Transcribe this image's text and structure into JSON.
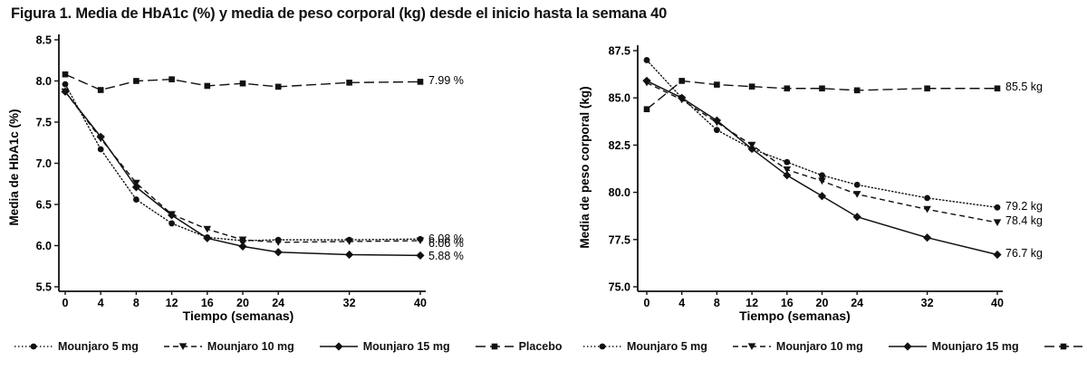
{
  "figure": {
    "title": "Figura 1. Media de HbA1c (%) y media de peso corporal (kg) desde el inicio hasta la semana 40"
  },
  "legend": [
    {
      "label": "Mounjaro 5 mg",
      "style": "dotted",
      "marker": "circle"
    },
    {
      "label": "Mounjaro 10 mg",
      "style": "dashed",
      "marker": "triangle-down"
    },
    {
      "label": "Mounjaro 15 mg",
      "style": "solid",
      "marker": "diamond"
    },
    {
      "label": "Placebo",
      "style": "longdash",
      "marker": "square"
    }
  ],
  "chart_data": [
    {
      "type": "line",
      "title": "",
      "xlabel": "Tiempo (semanas)",
      "ylabel": "Media de HbA1c (%)",
      "xlim": [
        0,
        40
      ],
      "ylim": [
        5.5,
        8.5
      ],
      "xticks": [
        0,
        4,
        8,
        12,
        16,
        20,
        24,
        32,
        40
      ],
      "yticks": [
        "5.5",
        "6.0",
        "6.5",
        "7.0",
        "7.5",
        "8.0",
        "8.5"
      ],
      "x": [
        0,
        4,
        8,
        12,
        16,
        20,
        24,
        32,
        40
      ],
      "grid": false,
      "legend_position": "bottom",
      "series": [
        {
          "name": "Mounjaro 5 mg",
          "style": "dotted",
          "marker": "circle",
          "values": [
            7.96,
            7.17,
            6.56,
            6.27,
            6.1,
            6.06,
            6.07,
            6.07,
            6.08
          ],
          "end_label": "6.08 %"
        },
        {
          "name": "Mounjaro 10 mg",
          "style": "dashed",
          "marker": "triangle-down",
          "values": [
            7.87,
            7.3,
            6.76,
            6.38,
            6.2,
            6.07,
            6.04,
            6.05,
            6.06
          ],
          "end_label": "6.06 %"
        },
        {
          "name": "Mounjaro 15 mg",
          "style": "solid",
          "marker": "diamond",
          "values": [
            7.87,
            7.32,
            6.71,
            6.37,
            6.09,
            5.99,
            5.92,
            5.89,
            5.88
          ],
          "end_label": "5.88 %"
        },
        {
          "name": "Placebo",
          "style": "longdash",
          "marker": "square",
          "values": [
            8.08,
            7.89,
            8.0,
            8.02,
            7.94,
            7.97,
            7.93,
            7.98,
            7.99
          ],
          "end_label": "7.99 %"
        }
      ]
    },
    {
      "type": "line",
      "title": "",
      "xlabel": "Tiempo (semanas)",
      "ylabel": "Media de peso corporal (kg)",
      "xlim": [
        0,
        40
      ],
      "ylim": [
        75.0,
        87.5
      ],
      "xticks": [
        0,
        4,
        8,
        12,
        16,
        20,
        24,
        32,
        40
      ],
      "yticks": [
        "75.0",
        "77.5",
        "80.0",
        "82.5",
        "85.0",
        "87.5"
      ],
      "x": [
        0,
        4,
        8,
        12,
        16,
        20,
        24,
        32,
        40
      ],
      "grid": false,
      "legend_position": "bottom",
      "series": [
        {
          "name": "Mounjaro 5 mg",
          "style": "dotted",
          "marker": "circle",
          "values": [
            87.0,
            85.0,
            83.3,
            82.3,
            81.6,
            80.9,
            80.4,
            79.7,
            79.2
          ],
          "end_label": "79.2 kg"
        },
        {
          "name": "Mounjaro 10 mg",
          "style": "dashed",
          "marker": "triangle-down",
          "values": [
            85.8,
            84.9,
            83.7,
            82.5,
            81.2,
            80.6,
            79.9,
            79.1,
            78.4
          ],
          "end_label": "78.4 kg"
        },
        {
          "name": "Mounjaro 15 mg",
          "style": "solid",
          "marker": "diamond",
          "values": [
            85.9,
            85.0,
            83.8,
            82.3,
            80.9,
            79.8,
            78.7,
            77.6,
            76.7
          ],
          "end_label": "76.7 kg"
        },
        {
          "name": "Placebo",
          "style": "longdash",
          "marker": "square",
          "values": [
            84.4,
            85.9,
            85.7,
            85.6,
            85.5,
            85.5,
            85.4,
            85.5,
            85.5
          ],
          "end_label": "85.5 kg"
        }
      ]
    }
  ]
}
